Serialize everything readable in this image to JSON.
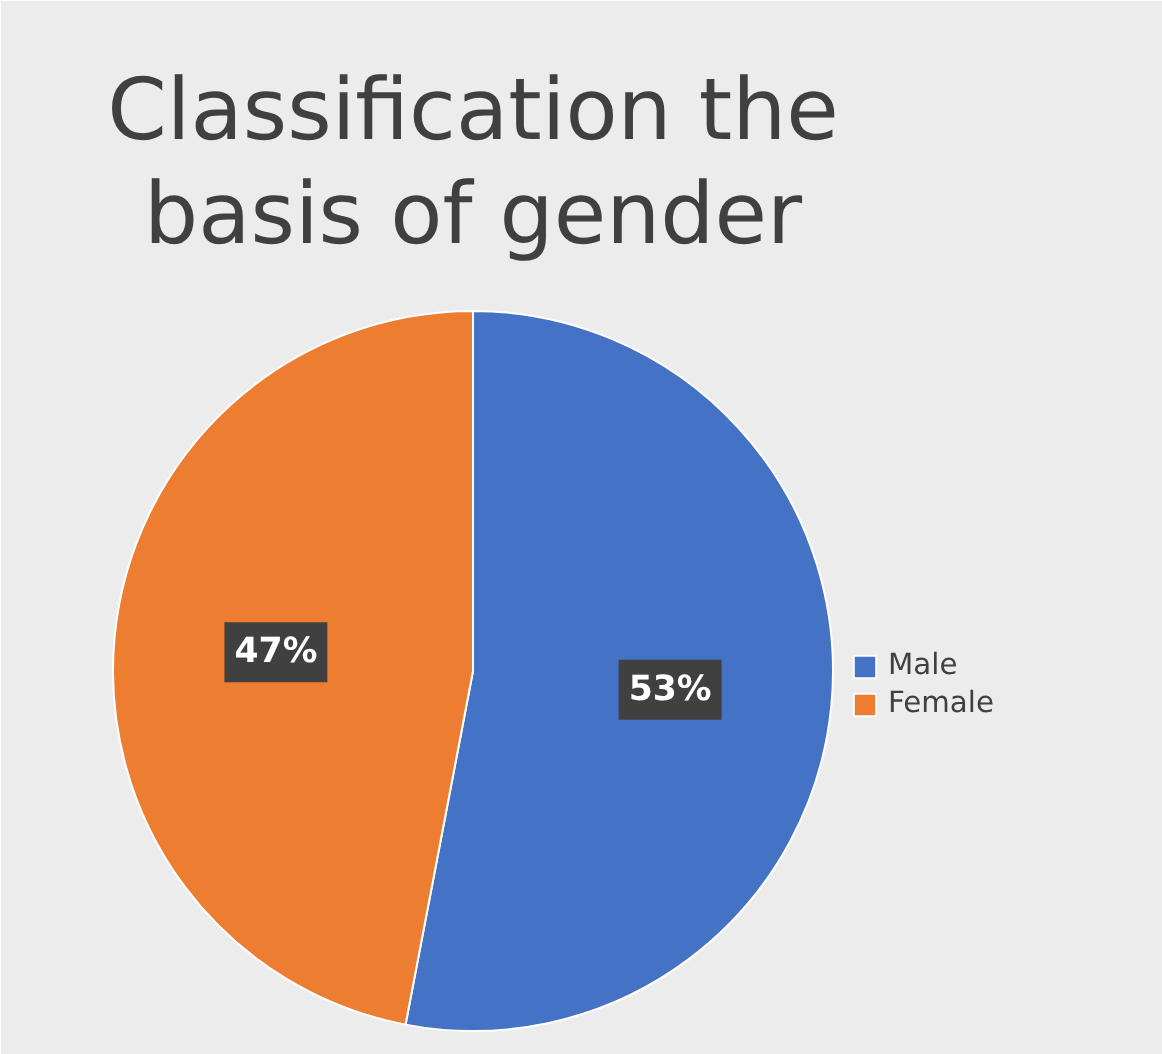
{
  "chart_data": {
    "type": "pie",
    "title": "Classification the basis of gender",
    "categories": [
      "Male",
      "Female"
    ],
    "values": [
      53,
      47
    ],
    "colors": [
      "#4472c4",
      "#ed7d31"
    ],
    "value_labels": [
      "53%",
      "47%"
    ],
    "legend": "right"
  }
}
